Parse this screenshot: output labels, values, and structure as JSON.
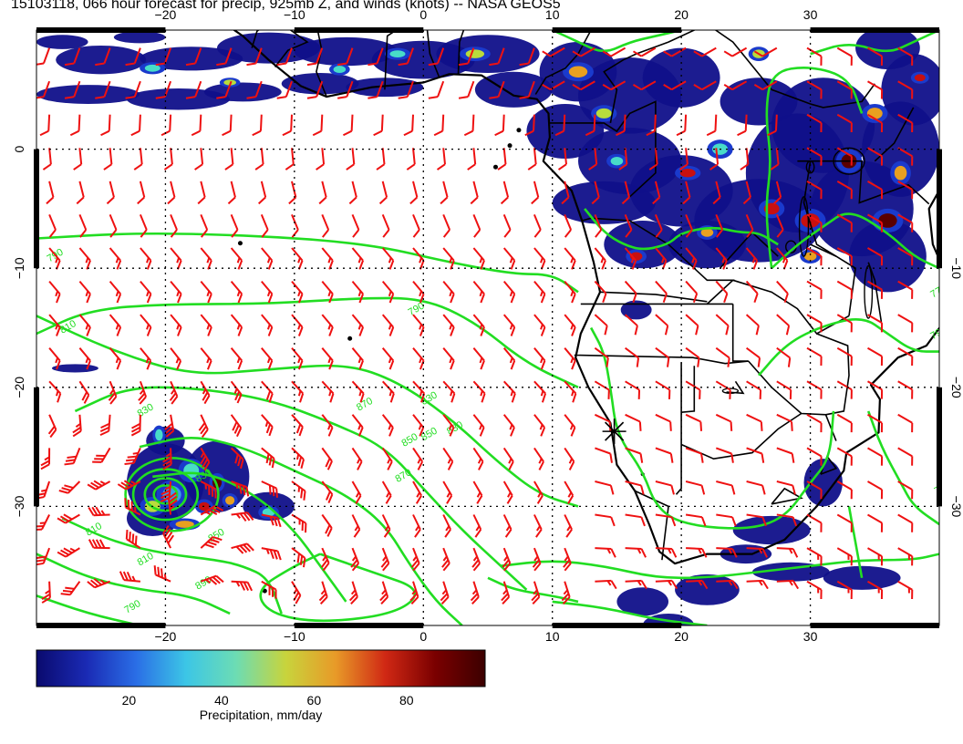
{
  "title": "15103118, 066 hour forecast for precip, 925mb Z, and winds (knots) -- NASA GEOS5",
  "map": {
    "lon_ticks_top": [
      "−20",
      "−10",
      "0",
      "10",
      "20",
      "30"
    ],
    "lon_ticks_bottom": [
      "−20",
      "−10",
      "0",
      "10",
      "20",
      "30"
    ],
    "lat_ticks_left": [
      "0",
      "−10",
      "−20",
      "−30"
    ],
    "lat_ticks_right": [
      "−10",
      "−20",
      "−30"
    ],
    "lon_range": [
      -30,
      40
    ],
    "lat_range": [
      -40,
      10
    ],
    "contour_color": "#22dd22",
    "barb_color": "#ee1111",
    "coast_color": "#000000",
    "precip_colors": [
      "#10108a",
      "#1a3acc",
      "#3aa0e8",
      "#48dcc8",
      "#b8dc3c",
      "#e8a020",
      "#c81010",
      "#5a0000"
    ],
    "contour_labels": [
      "790",
      "790",
      "810",
      "830",
      "830",
      "850",
      "850",
      "870",
      "890",
      "810",
      "850",
      "830",
      "790",
      "770",
      "830",
      "790",
      "870",
      "810",
      "790"
    ]
  },
  "colorbar": {
    "ticks": [
      "20",
      "40",
      "60",
      "80"
    ],
    "label": "Precipitation, mm/day",
    "stops": [
      "#0a0a6e",
      "#1a2ab4",
      "#2a6ee6",
      "#3cc6e6",
      "#6cdcb4",
      "#c8d43c",
      "#e89a28",
      "#d02814",
      "#7a0000",
      "#3c0000"
    ]
  }
}
